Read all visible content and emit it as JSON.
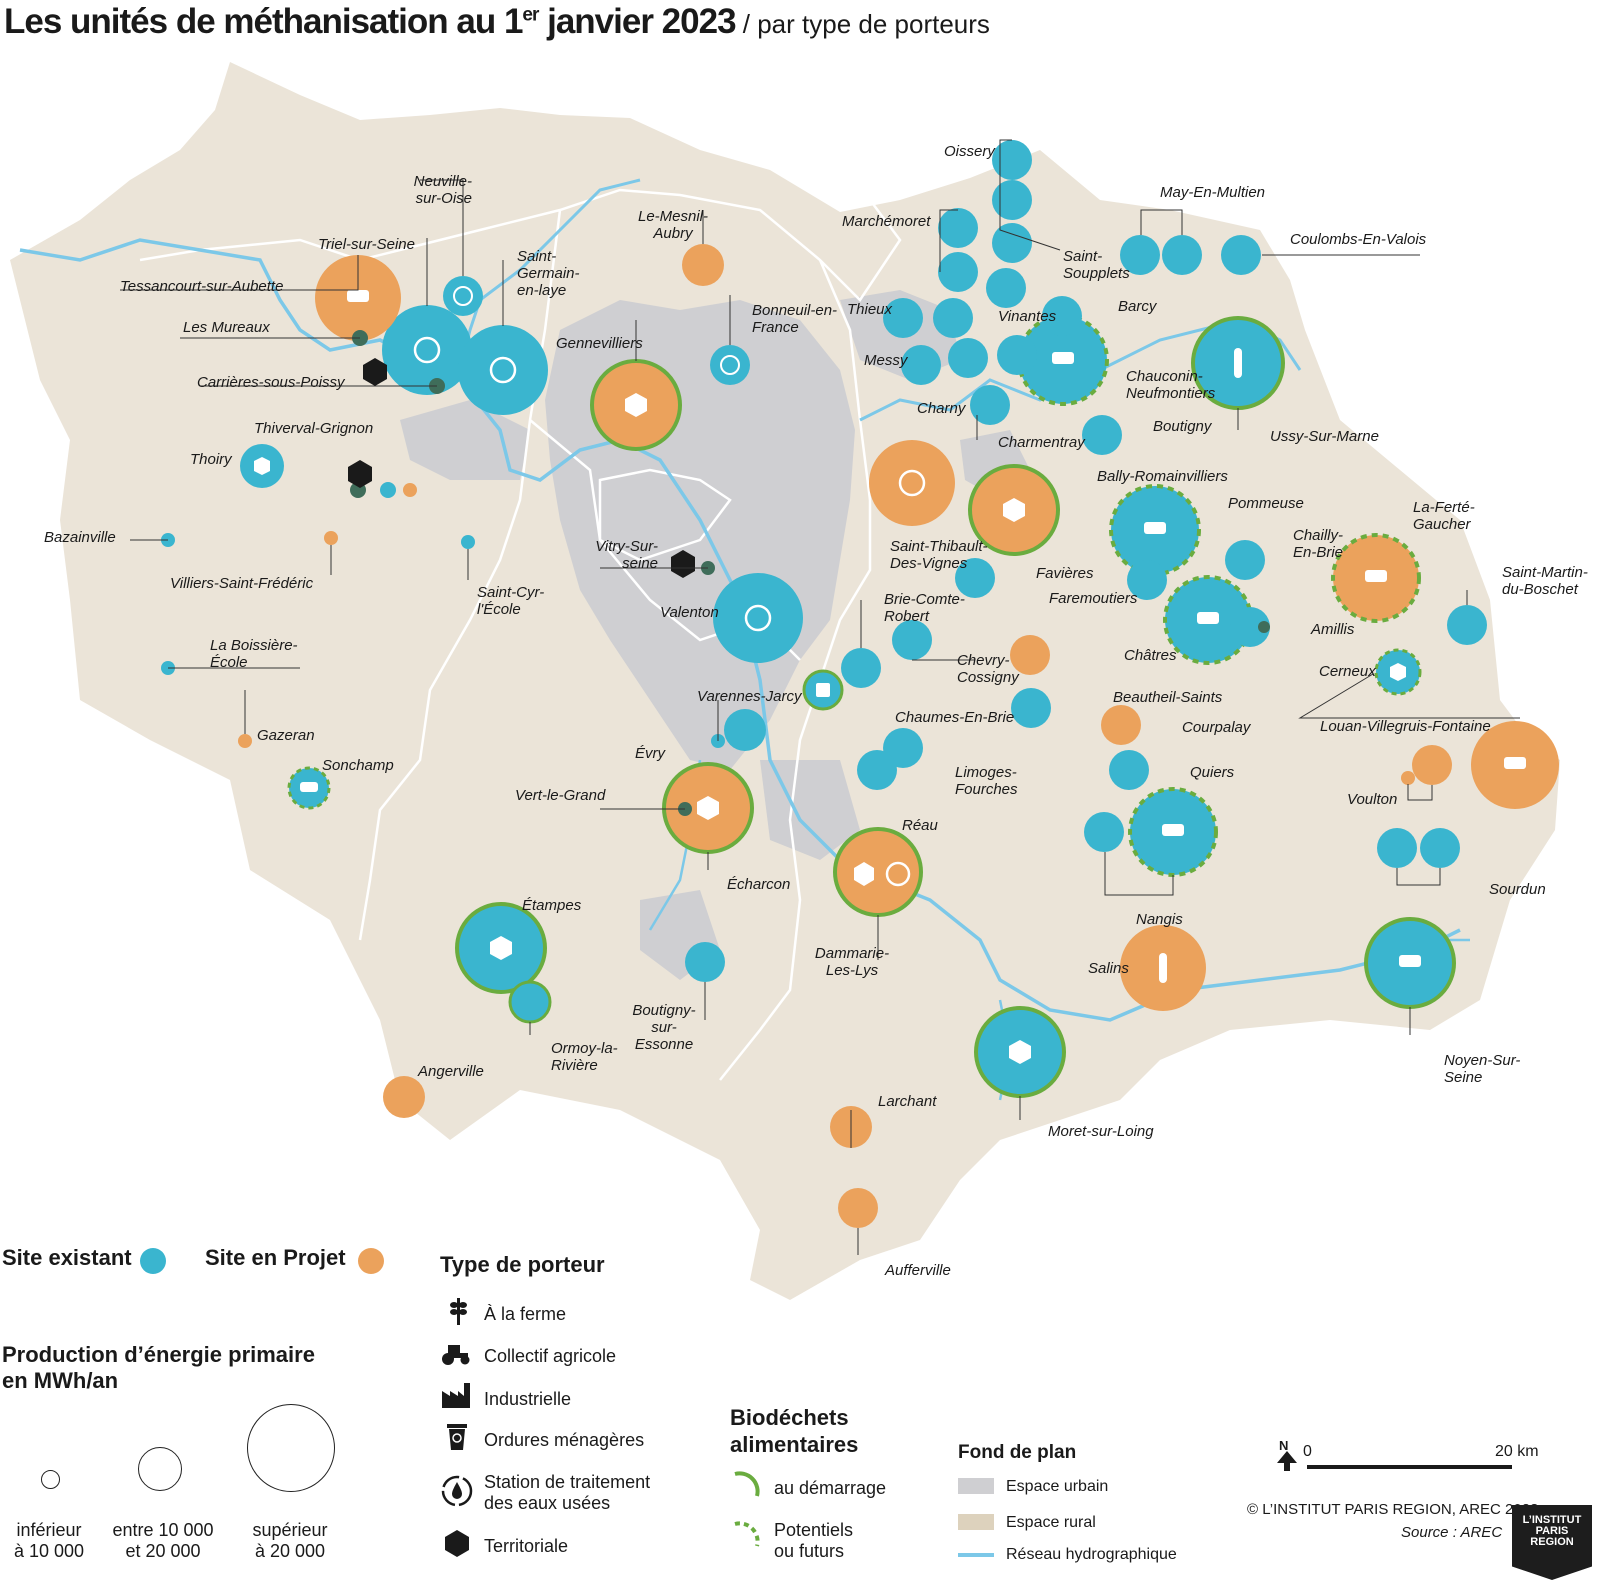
{
  "title": {
    "main_before": "Les unités de méthanisation au 1",
    "main_sup": "er",
    "main_after": " janvier 2023",
    "sub": " / par type de porteurs"
  },
  "colors": {
    "existing": "#3ab5cf",
    "project": "#eba25c",
    "green": "#6aac3f",
    "rural": "#ebe4d8",
    "urban": "#cfcfd2",
    "river": "#7cc8e8"
  },
  "places": [
    "Oissery",
    "May-En-Multien",
    "Coulombs-En-Valois",
    "Marchémoret",
    "Saint-Soupplets",
    "Barcy",
    "Vinantes",
    "Thieux",
    "Messy",
    "Charny",
    "Chauconin-Neufmontiers",
    "Charmentray",
    "Boutigny",
    "Ussy-Sur-Marne",
    "Neuville-sur-Oise",
    "Triel-sur-Seine",
    "Saint-Germain-en-laye",
    "Tessancourt-sur-Aubette",
    "Les Mureaux",
    "Carrières-sous-Poissy",
    "Le-Mesnil-Aubry",
    "Bonneuil-en-France",
    "Gennevilliers",
    "Thiverval-Grignon",
    "Thoiry",
    "Bazainville",
    "Villiers-Saint-Frédéric",
    "Saint-Cyr-l'École",
    "Vitry-Sur-seine",
    "Valenton",
    "La Boissière-École",
    "Gazeran",
    "Sonchamp",
    "Évry",
    "Vert-le-Grand",
    "Écharcon",
    "Varennes-Jarcy",
    "Saint-Thibault-Des-Vignes",
    "Bally-Romainvilliers",
    "Pommeuse",
    "Favières",
    "Faremoutiers",
    "Chailly-En-Brie",
    "La-Ferté-Gaucher",
    "Saint-Martin-du-Boschet",
    "Brie-Comte-Robert",
    "Chevry-Cossigny",
    "Châtres",
    "Amillis",
    "Beautheil-Saints",
    "Cerneux",
    "Chaumes-En-Brie",
    "Courpalay",
    "Louan-Villegruis-Fontaine",
    "Limoges-Fourches",
    "Réau",
    "Quiers",
    "Voulton",
    "Nangis",
    "Sourdun",
    "Dammarie-Les-Lys",
    "Étampes",
    "Ormoy-la-Rivière",
    "Boutigny-sur-Essonne",
    "Salins",
    "Noyen-Sur-Seine",
    "Moret-sur-Loing",
    "Angerville",
    "Larchant",
    "Aufferville"
  ],
  "legend": {
    "existing": "Site existant",
    "project": "Site en Projet",
    "production_title_1": "Production d’énergie primaire",
    "production_title_2": "en MWh/an",
    "size_small_1": "inférieur",
    "size_small_2": "à 10 000",
    "size_mid_1": "entre 10 000",
    "size_mid_2": "et 20 000",
    "size_big_1": "supérieur",
    "size_big_2": "à 20 000",
    "carrier_title": "Type de porteur",
    "carrier_farm": "À la ferme",
    "carrier_collective": "Collectif agricole",
    "carrier_industrial": "Industrielle",
    "carrier_household": "Ordures ménagères",
    "carrier_water_1": "Station de traitement",
    "carrier_water_2": "des eaux usées",
    "carrier_territorial": "Territoriale",
    "bio_title_1": "Biodéchets",
    "bio_title_2": "alimentaires",
    "bio_start": "au démarrage",
    "bio_future_1": "Potentiels",
    "bio_future_2": "ou futurs",
    "bg_title": "Fond de plan",
    "bg_urban": "Espace urbain",
    "bg_rural": "Espace rural",
    "bg_hydro": "Réseau hydrographique",
    "scale_0": "0",
    "scale_20": "20 km",
    "north": "N",
    "credit": "© L’INSTITUT PARIS REGION, AREC 2023",
    "source": "Source : AREC"
  },
  "logo": {
    "line1": "L’INSTITUT",
    "line2": "PARIS",
    "line3": "REGION"
  }
}
